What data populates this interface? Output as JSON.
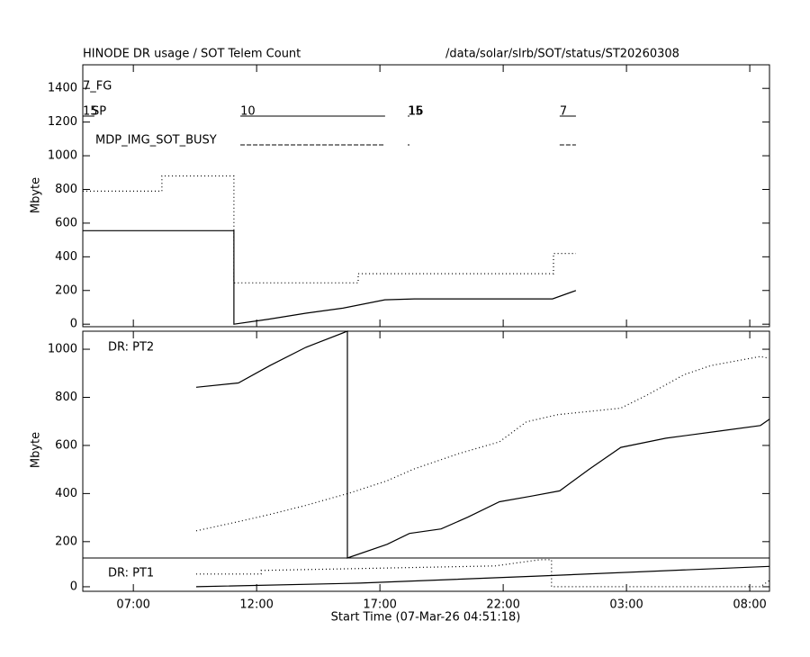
{
  "chart_data": [
    {
      "type": "line",
      "title": "HINODE DR usage / SOT Telem Count",
      "subtitle": "/data/solar/slrb/SOT/status/ST20260308",
      "ylabel": "Mbyte",
      "xlim": [
        4.95,
        32.8
      ],
      "ylim": [
        -15,
        1540
      ],
      "yticks": [
        0,
        200,
        400,
        600,
        800,
        1000,
        1200,
        1400
      ],
      "rows": [
        {
          "label": "7_FG"
        },
        {
          "label": "SP",
          "dash": "solid",
          "segments": [
            {
              "x": [
                4.95,
                5.42
              ],
              "label": "15"
            },
            {
              "x": [
                11.34,
                17.21
              ],
              "label": "10"
            },
            {
              "x": [
                18.13,
                18.16
              ],
              "label": "15"
            },
            {
              "x": [
                18.16,
                18.2
              ],
              "label": "16"
            },
            {
              "x": [
                24.29,
                24.95
              ],
              "label": "7"
            }
          ]
        },
        {
          "label": "MDP_IMG_SOT_BUSY",
          "dash": "dashed",
          "segments": [
            {
              "x": [
                11.34,
                17.21
              ]
            },
            {
              "x": [
                18.13,
                18.2
              ]
            },
            {
              "x": [
                24.29,
                24.95
              ]
            }
          ]
        }
      ],
      "series": [
        {
          "color": "#000000",
          "dash": "solid",
          "x": [
            4.95,
            11.08,
            11.08,
            12.5,
            14,
            15.5,
            17.2,
            18.4,
            24.0,
            24.95
          ],
          "values": [
            555,
            555,
            0,
            30,
            65,
            95,
            145,
            150,
            150,
            200
          ]
        },
        {
          "color": "#000000",
          "dash": "dotted",
          "x": [
            4.95,
            8.16,
            8.16,
            11.08,
            11.08,
            16.12,
            16.12,
            24.04,
            24.04,
            24.95
          ],
          "values": [
            790,
            790,
            880,
            880,
            245,
            245,
            300,
            300,
            420,
            420
          ]
        }
      ]
    },
    {
      "type": "line",
      "label": "DR: PT2",
      "ylabel": "Mbyte",
      "xlim": [
        4.95,
        32.8
      ],
      "ylim": [
        132,
        1075
      ],
      "yticks": [
        200,
        400,
        600,
        800,
        1000
      ],
      "series": [
        {
          "color": "#000000",
          "dash": "solid",
          "x": [
            9.55,
            11.26,
            12.54,
            14.0,
            15.68,
            15.68,
            17.29,
            18.2,
            19.48,
            20.57,
            21.85,
            23.13,
            24.29,
            25.5,
            26.77,
            28.6,
            30.79,
            32.43,
            32.8
          ],
          "values": [
            842,
            860,
            932,
            1008,
            1075,
            132,
            189,
            234,
            253,
            302,
            366,
            389,
            411,
            502,
            592,
            630,
            660,
            683,
            709
          ]
        },
        {
          "color": "#000000",
          "dash": "dotted",
          "x": [
            9.55,
            11.26,
            12.54,
            14.0,
            15.83,
            17.29,
            18.38,
            20.2,
            21.85,
            22.94,
            24.22,
            26.77,
            27.87,
            29.33,
            30.42,
            32.43,
            32.8
          ],
          "values": [
            245,
            283,
            313,
            351,
            404,
            453,
            502,
            566,
            615,
            698,
            728,
            755,
            811,
            894,
            932,
            970,
            962
          ]
        }
      ]
    },
    {
      "type": "line",
      "label": "DR: PT1",
      "xlabel": "Start Time (07-Mar-26 04:51:18)",
      "xlim": [
        4.95,
        32.8
      ],
      "ylim": [
        -19,
        120
      ],
      "yticks": [
        0
      ],
      "xticks": [
        {
          "value": 7,
          "label": "07:00"
        },
        {
          "value": 12,
          "label": "12:00"
        },
        {
          "value": 17,
          "label": "17:00"
        },
        {
          "value": 22,
          "label": "22:00"
        },
        {
          "value": 27,
          "label": "03:00"
        },
        {
          "value": 32,
          "label": "08:00"
        }
      ],
      "series": [
        {
          "color": "#000000",
          "dash": "solid",
          "x": [
            9.55,
            16.19,
            23.49,
            32.8
          ],
          "values": [
            0,
            15,
            45,
            85
          ]
        },
        {
          "color": "#000000",
          "dash": "dotted",
          "x": [
            9.55,
            12.18,
            12.18,
            21.67,
            23.49,
            23.96,
            23.96,
            32.43,
            32.8
          ],
          "values": [
            53,
            53,
            68,
            87,
            113,
            113,
            0,
            0,
            26
          ]
        }
      ]
    }
  ]
}
